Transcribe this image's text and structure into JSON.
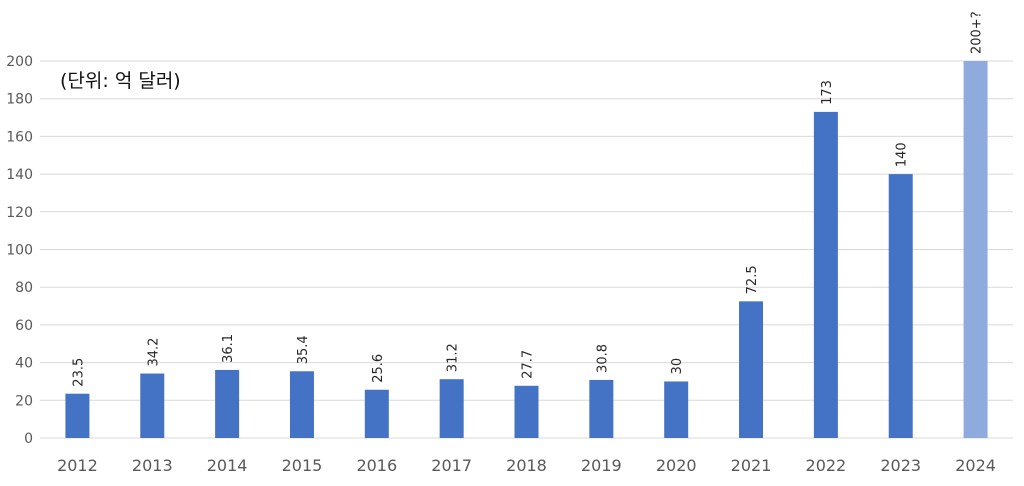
{
  "chart_data": {
    "type": "bar",
    "unit_label": "(단위: 억 달러)",
    "categories": [
      "2012",
      "2013",
      "2014",
      "2015",
      "2016",
      "2017",
      "2018",
      "2019",
      "2020",
      "2021",
      "2022",
      "2023",
      "2024"
    ],
    "values": [
      23.5,
      34.2,
      36.1,
      35.4,
      25.6,
      31.2,
      27.7,
      30.8,
      30,
      72.5,
      173,
      140,
      200
    ],
    "data_labels": [
      "23.5",
      "34.2",
      "36.1",
      "35.4",
      "25.6",
      "31.2",
      "27.7",
      "30.8",
      "30",
      "72.5",
      "173",
      "140",
      "200+?"
    ],
    "highlighted_index": 12,
    "ylim": [
      0,
      200
    ],
    "yticks": [
      0,
      20,
      40,
      60,
      80,
      100,
      120,
      140,
      160,
      180,
      200
    ],
    "grid": true,
    "colors": {
      "bar": "#4472C4",
      "bar_projected": "#8FAADC",
      "grid": "#D9D9D9",
      "axis_text": "#595959",
      "label_text": "#262626"
    }
  }
}
